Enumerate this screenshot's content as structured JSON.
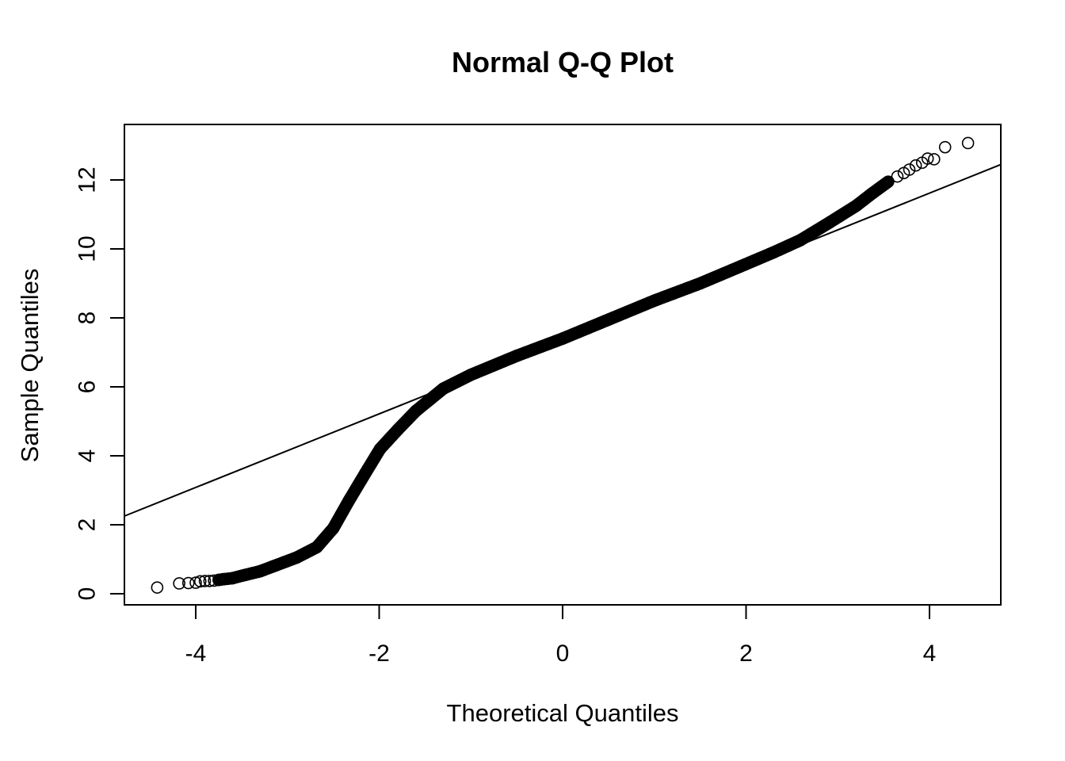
{
  "chart_data": {
    "type": "scatter",
    "title": "Normal Q-Q Plot",
    "xlabel": "Theoretical Quantiles",
    "ylabel": "Sample Quantiles",
    "xlim": [
      -4.78,
      4.78
    ],
    "ylim": [
      -0.3,
      13.6
    ],
    "xticks": [
      -4,
      -2,
      0,
      2,
      4
    ],
    "yticks": [
      0,
      2,
      4,
      6,
      8,
      10,
      12
    ],
    "grid": false,
    "legend": null,
    "series": [
      {
        "name": "sample quantiles",
        "marker": "open-circle",
        "points": [
          [
            -4.42,
            0.18
          ],
          [
            -4.18,
            0.3
          ],
          [
            -4.08,
            0.31
          ],
          [
            -4.0,
            0.32
          ],
          [
            -3.95,
            0.36
          ],
          [
            -3.9,
            0.37
          ],
          [
            -3.85,
            0.37
          ],
          [
            -3.8,
            0.38
          ],
          [
            -3.75,
            0.4
          ],
          [
            -3.7,
            0.42
          ],
          [
            -3.6,
            0.45
          ],
          [
            -3.5,
            0.52
          ],
          [
            -3.3,
            0.65
          ],
          [
            -3.1,
            0.85
          ],
          [
            -2.9,
            1.05
          ],
          [
            -2.68,
            1.35
          ],
          [
            -2.5,
            1.9
          ],
          [
            -2.33,
            2.7
          ],
          [
            -2.15,
            3.5
          ],
          [
            -1.99,
            4.2
          ],
          [
            -1.8,
            4.75
          ],
          [
            -1.6,
            5.3
          ],
          [
            -1.3,
            5.95
          ],
          [
            -1.0,
            6.35
          ],
          [
            -0.5,
            6.9
          ],
          [
            0.0,
            7.4
          ],
          [
            0.5,
            7.95
          ],
          [
            1.0,
            8.5
          ],
          [
            1.5,
            9.0
          ],
          [
            1.99,
            9.55
          ],
          [
            2.3,
            9.9
          ],
          [
            2.59,
            10.25
          ],
          [
            2.9,
            10.75
          ],
          [
            3.2,
            11.25
          ],
          [
            3.37,
            11.6
          ],
          [
            3.55,
            11.95
          ],
          [
            3.65,
            12.1
          ],
          [
            3.72,
            12.2
          ],
          [
            3.78,
            12.3
          ],
          [
            3.85,
            12.42
          ],
          [
            3.92,
            12.5
          ],
          [
            3.98,
            12.62
          ],
          [
            4.05,
            12.6
          ],
          [
            4.17,
            12.95
          ],
          [
            4.42,
            13.07
          ]
        ]
      }
    ],
    "reference_line": {
      "x": [
        -4.78,
        4.78
      ],
      "y": [
        2.25,
        12.45
      ]
    }
  }
}
